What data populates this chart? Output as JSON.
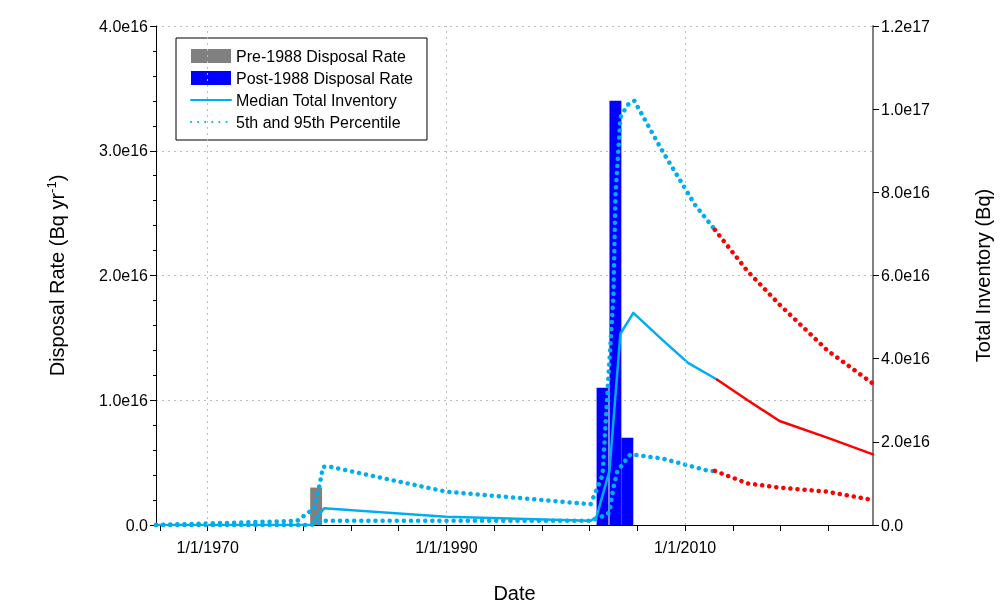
{
  "chart_data": {
    "type": "line",
    "xlabel": "Date",
    "ylabel": "Disposal Rate (Bq yr$^{-1}$)",
    "y2label": "Total Inventory (Bq)",
    "xlim": [
      "1965-09",
      "2025-10"
    ],
    "xticks": [
      {
        "value": "1966-01-01",
        "label": null
      },
      {
        "value": "1970-01-01",
        "label": "1/1/1970"
      },
      {
        "value": "1974-01-01",
        "label": null
      },
      {
        "value": "1978-01-01",
        "label": null
      },
      {
        "value": "1982-01-01",
        "label": null
      },
      {
        "value": "1986-01-01",
        "label": null
      },
      {
        "value": "1990-01-01",
        "label": "1/1/1990"
      },
      {
        "value": "1994-01-01",
        "label": null
      },
      {
        "value": "1998-01-01",
        "label": null
      },
      {
        "value": "2002-01-01",
        "label": null
      },
      {
        "value": "2006-01-01",
        "label": null
      },
      {
        "value": "2010-01-01",
        "label": "1/1/2010"
      },
      {
        "value": "2014-01-01",
        "label": null
      },
      {
        "value": "2018-01-01",
        "label": null
      },
      {
        "value": "2022-01-01",
        "label": null
      }
    ],
    "ylim": [
      0,
      4e+16
    ],
    "yticks": [
      {
        "value": 0,
        "label": "0.0"
      },
      {
        "value": 1e+16,
        "label": "1.0e16"
      },
      {
        "value": 2e+16,
        "label": "2.0e16"
      },
      {
        "value": 3e+16,
        "label": "3.0e16"
      },
      {
        "value": 4e+16,
        "label": "4.0e16"
      }
    ],
    "y2lim": [
      0,
      1.2e+17
    ],
    "y2ticks": [
      {
        "value": 0,
        "label": "0.0"
      },
      {
        "value": 2e+16,
        "label": "2.0e16"
      },
      {
        "value": 4e+16,
        "label": "4.0e16"
      },
      {
        "value": 6e+16,
        "label": "6.0e16"
      },
      {
        "value": 8e+16,
        "label": "8.0e16"
      },
      {
        "value": 1e+17,
        "label": "1.0e17"
      },
      {
        "value": 1.2e+17,
        "label": "1.2e17"
      }
    ],
    "grid": true,
    "legend": "top left",
    "marker": "none",
    "series": [
      {
        "name": "Pre-1988 Disposal Rate",
        "type": "bar",
        "color": "#808080",
        "x": [
          "1979-02"
        ],
        "values": [
          3000000000000000.0
        ]
      },
      {
        "name": "Post-1988 Disposal Rate",
        "type": "bar",
        "color": "#0000ff",
        "x": [
          "2003-02",
          "2004-03",
          "2005-03"
        ],
        "values": [
          1.1e+16,
          3.4e+16,
          7000000000000000.0
        ]
      },
      {
        "name": "Median Total Inventory",
        "axis": "y2",
        "color": "#00aeef",
        "line_style": "solid",
        "x": [
          "1965-09",
          "1978-09",
          "1979-10",
          "1990-01",
          "2002-02",
          "2002-08",
          "2003-09",
          "2004-08",
          "2005-09",
          "2007-12",
          "2010-04",
          "2012-09"
        ],
        "values": [
          0,
          0,
          4000000000000000.0,
          2000000000000000.0,
          1000000000000000.0,
          2000000000000000.0,
          1.3e+16,
          4.6e+16,
          5.1e+16,
          4.5e+16,
          3.9e+16,
          3.5e+16
        ]
      },
      {
        "name": "5th and 95th Percentile",
        "axis": "y2",
        "color": "#00aeef",
        "line_style": "dotted",
        "x": [
          "1965-09",
          "1977-07",
          "1978-12",
          "1979-05",
          "1979-09",
          "1980-04",
          "1990-01",
          "2002-02",
          "2003-02",
          "2003-07",
          "2004-01",
          "2004-03",
          "2004-08",
          "2005-03",
          "2005-10",
          "2008-02",
          "2010-11",
          "2012-07"
        ],
        "values": [
          0,
          1000000000000000.0,
          4000000000000000.0,
          9000000000000000.0,
          1.4e+16,
          1.4e+16,
          8000000000000000.0,
          5000000000000000.0,
          1.2e+16,
          3.2e+16,
          5.5e+16,
          7.9e+16,
          9.8e+16,
          1.01e+17,
          1.02e+17,
          9e+16,
          7.7e+16,
          7.1e+16
        ]
      },
      {
        "axis": "y2",
        "color": "#00aeef",
        "line_style": "dotted",
        "x": [
          "1965-09",
          "1978-09",
          "1979-10",
          "2002-02",
          "2003-01",
          "2003-09",
          "2004-01",
          "2004-05",
          "2005-06",
          "2008-02",
          "2012-01",
          "2012-07"
        ],
        "values": [
          0,
          0,
          1000000000000000.0,
          1000000000000000.0,
          2000000000000000.0,
          3000000000000000.0,
          9000000000000000.0,
          1.3e+16,
          1.7e+16,
          1.6e+16,
          1.3e+16,
          1.3e+16
        ]
      },
      {
        "axis": "y2",
        "color": "#ff0000",
        "line_style": "solid",
        "x": [
          "2012-09",
          "2015-04",
          "2017-12",
          "2021-12",
          "2025-10"
        ],
        "values": [
          3.5e+16,
          3e+16,
          2.5e+16,
          2.1e+16,
          1.7e+16
        ]
      },
      {
        "axis": "y2",
        "color": "#ff0000",
        "line_style": "dotted",
        "x": [
          "2012-07",
          "2015-04",
          "2017-12",
          "2021-12",
          "2025-10"
        ],
        "values": [
          7.1e+16,
          6.1e+16,
          5.3e+16,
          4.2e+16,
          3.4e+16
        ]
      },
      {
        "axis": "y2",
        "color": "#ff0000",
        "line_style": "dotted",
        "x": [
          "2012-07",
          "2015-04",
          "2017-12",
          "2021-12",
          "2025-10"
        ],
        "values": [
          1.3e+16,
          1e+16,
          9000000000000000.0,
          8000000000000000.0,
          6000000000000000.0
        ]
      }
    ]
  }
}
